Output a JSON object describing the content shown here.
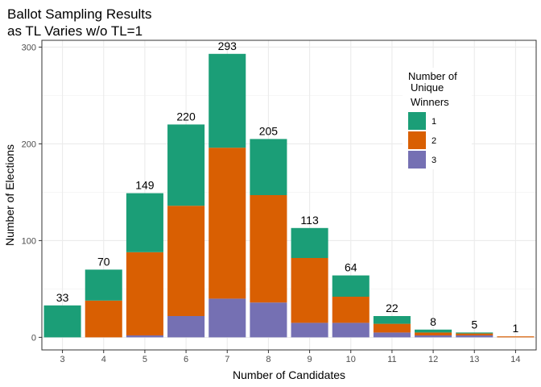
{
  "chart_data": {
    "type": "bar",
    "stacked": true,
    "title": [
      "Ballot Sampling Results",
      "as TL Varies w/o TL=1"
    ],
    "xlabel": "Number of Candidates",
    "ylabel": "Number of Elections",
    "categories": [
      "3",
      "4",
      "5",
      "6",
      "7",
      "8",
      "9",
      "10",
      "11",
      "12",
      "13",
      "14"
    ],
    "yticks": [
      0,
      100,
      200,
      300
    ],
    "ylim": [
      -13,
      307
    ],
    "grid": true,
    "totals": [
      33,
      70,
      149,
      220,
      293,
      205,
      113,
      64,
      22,
      8,
      5,
      1
    ],
    "legend": {
      "title": [
        "Number of",
        "Unique",
        "Winners"
      ],
      "position": "top-right"
    },
    "series": [
      {
        "name": "1",
        "color": "#1b9e77",
        "values": [
          33,
          32,
          61,
          84,
          97,
          58,
          31,
          22,
          8,
          3,
          1,
          0
        ]
      },
      {
        "name": "2",
        "color": "#d95f02",
        "values": [
          0,
          38,
          86,
          114,
          156,
          111,
          67,
          27,
          9,
          3,
          2,
          1
        ]
      },
      {
        "name": "3",
        "color": "#7570b3",
        "values": [
          0,
          0,
          2,
          22,
          40,
          36,
          15,
          15,
          5,
          2,
          2,
          0
        ]
      }
    ]
  }
}
